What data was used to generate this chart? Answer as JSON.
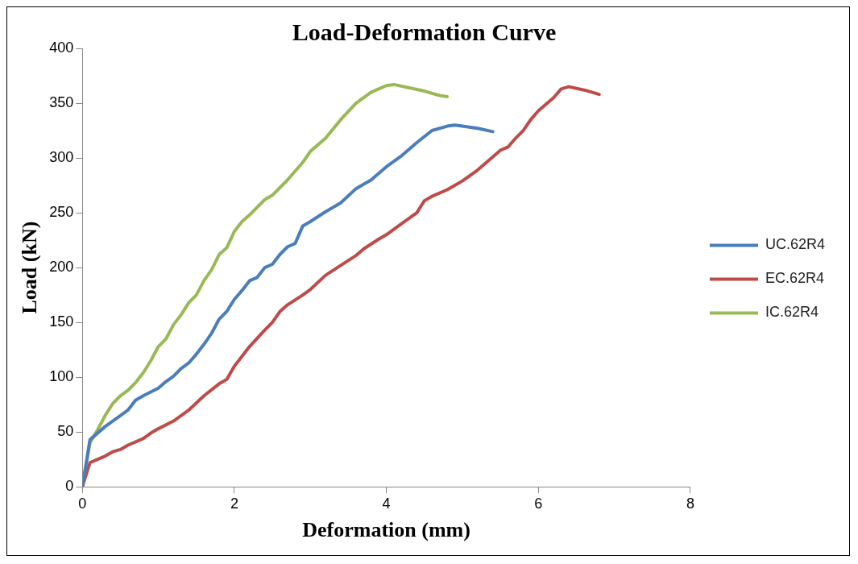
{
  "chart_data": {
    "type": "line",
    "title": "Load-Deformation Curve",
    "xlabel": "Deformation (mm)",
    "ylabel": "Load (kN)",
    "xlim": [
      0,
      8
    ],
    "xticks": [
      0,
      2,
      4,
      6,
      8
    ],
    "ylim": [
      0,
      400
    ],
    "yticks": [
      0,
      50,
      100,
      150,
      200,
      250,
      300,
      350,
      400
    ],
    "grid": false,
    "legend": "right",
    "marker": "none",
    "line_style": "solid",
    "series": [
      {
        "name": "UC.62R4",
        "color": "#4a7ebb",
        "x": [
          0,
          0.1,
          0.15,
          0.3,
          0.5,
          0.6,
          0.7,
          0.8,
          1.0,
          1.1,
          1.2,
          1.3,
          1.4,
          1.5,
          1.6,
          1.7,
          1.8,
          1.9,
          2.0,
          2.1,
          2.2,
          2.3,
          2.4,
          2.5,
          2.6,
          2.7,
          2.8,
          2.9,
          3.0,
          3.2,
          3.4,
          3.6,
          3.8,
          4.0,
          4.2,
          4.4,
          4.6,
          4.8,
          4.9,
          5.0,
          5.2,
          5.4
        ],
        "values": [
          0,
          43,
          46,
          55,
          65,
          70,
          79,
          83,
          90,
          96,
          101,
          108,
          113,
          121,
          130,
          140,
          153,
          160,
          171,
          179,
          188,
          191,
          200,
          203,
          212,
          219,
          222,
          238,
          242,
          251,
          259,
          272,
          280,
          292,
          302,
          314,
          325,
          329,
          330,
          329,
          327,
          324
        ]
      },
      {
        "name": "EC.62R4",
        "color": "#be4b48",
        "x": [
          0,
          0.1,
          0.2,
          0.3,
          0.4,
          0.5,
          0.6,
          0.8,
          0.9,
          1.0,
          1.2,
          1.4,
          1.6,
          1.8,
          1.9,
          2.0,
          2.2,
          2.4,
          2.5,
          2.6,
          2.7,
          2.9,
          3.0,
          3.2,
          3.4,
          3.6,
          3.7,
          3.9,
          4.0,
          4.2,
          4.4,
          4.5,
          4.6,
          4.8,
          5.0,
          5.2,
          5.4,
          5.5,
          5.6,
          5.7,
          5.8,
          5.9,
          6.0,
          6.2,
          6.3,
          6.4,
          6.6,
          6.8
        ],
        "values": [
          0,
          22,
          25,
          28,
          32,
          34,
          38,
          44,
          49,
          53,
          60,
          70,
          83,
          94,
          98,
          110,
          128,
          143,
          150,
          160,
          166,
          175,
          180,
          193,
          202,
          211,
          217,
          226,
          230,
          240,
          250,
          261,
          265,
          271,
          279,
          289,
          301,
          307,
          310,
          318,
          325,
          335,
          343,
          355,
          363,
          365,
          362,
          358
        ]
      },
      {
        "name": "IC.62R4",
        "color": "#98b954",
        "x": [
          0,
          0.1,
          0.2,
          0.3,
          0.4,
          0.5,
          0.6,
          0.7,
          0.8,
          0.9,
          1.0,
          1.1,
          1.2,
          1.3,
          1.4,
          1.5,
          1.6,
          1.7,
          1.8,
          1.9,
          2.0,
          2.1,
          2.2,
          2.4,
          2.5,
          2.7,
          2.9,
          3.0,
          3.2,
          3.4,
          3.6,
          3.8,
          4.0,
          4.1,
          4.3,
          4.5,
          4.7,
          4.8
        ],
        "values": [
          0,
          40,
          52,
          65,
          76,
          83,
          88,
          95,
          104,
          115,
          128,
          135,
          148,
          157,
          168,
          175,
          188,
          198,
          212,
          218,
          233,
          242,
          248,
          262,
          266,
          280,
          296,
          306,
          318,
          335,
          350,
          360,
          366,
          367,
          364,
          361,
          357,
          356
        ]
      }
    ]
  }
}
